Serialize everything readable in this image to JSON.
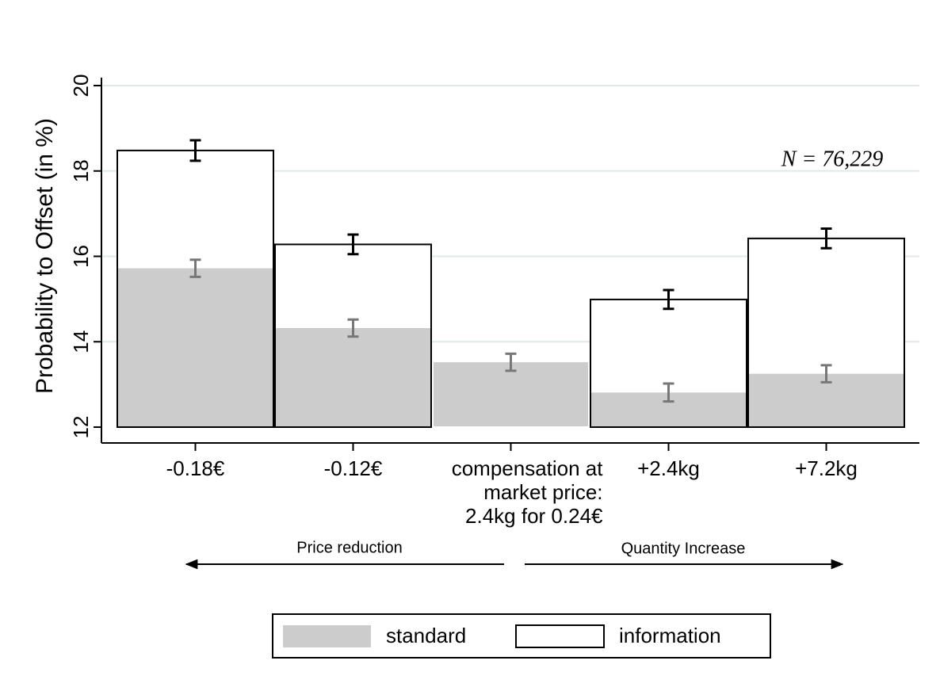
{
  "chart_data": {
    "type": "bar",
    "y_label": "Probability to Offset (in %)",
    "categories": [
      "-0.18€",
      "-0.12€",
      "compensation at\nmarket price:\n2.4kg for 0.24€",
      "+2.4kg",
      "+7.2kg"
    ],
    "series": [
      {
        "name": "standard",
        "color": "#cccccc",
        "values": [
          15.72,
          14.32,
          13.52,
          12.81,
          13.25
        ],
        "errors": [
          0.2,
          0.2,
          0.2,
          0.21,
          0.2
        ]
      },
      {
        "name": "information",
        "color": "#ffffff",
        "values": [
          18.48,
          16.28,
          null,
          14.99,
          16.42
        ],
        "errors": [
          0.24,
          0.23,
          null,
          0.22,
          0.23
        ]
      }
    ],
    "ylim": [
      12,
      20
    ],
    "yticks": [
      12,
      14,
      16,
      18,
      20
    ],
    "grid": true,
    "annotation": "N = 76,229",
    "direction_labels": [
      "Price reduction",
      "Quantity Increase"
    ]
  }
}
